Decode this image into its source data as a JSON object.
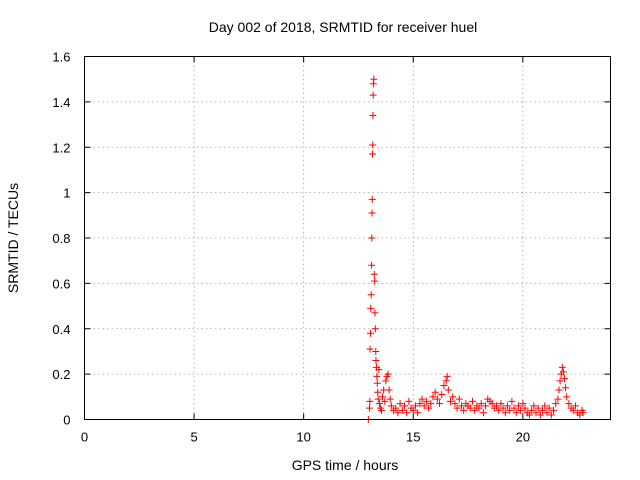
{
  "chart_data": {
    "type": "scatter",
    "title": "Day 002 of 2018, SRMTID for receiver huel",
    "xlabel": "GPS time / hours",
    "ylabel": "SRMTID / TECUs",
    "xlim": [
      0,
      24
    ],
    "ylim": [
      0,
      1.6
    ],
    "xticks": [
      0,
      5,
      10,
      15,
      20
    ],
    "yticks": [
      0,
      0.2,
      0.4,
      0.6,
      0.8,
      1,
      1.2,
      1.4,
      1.6
    ],
    "xtick_labels": [
      "0",
      "5",
      "10",
      "15",
      "20"
    ],
    "ytick_labels": [
      "0",
      "0.2",
      "0.4",
      "0.6",
      "0.8",
      "1",
      "1.2",
      "1.4",
      "1.6"
    ],
    "grid": true,
    "marker": "+",
    "color": "#ff0000",
    "series": [
      {
        "name": "SRMTID",
        "x": [
          12.95,
          13.0,
          13.02,
          13.03,
          13.05,
          13.06,
          13.08,
          13.1,
          13.11,
          13.12,
          13.13,
          13.14,
          13.15,
          13.16,
          13.17,
          13.18,
          13.2,
          13.22,
          13.24,
          13.25,
          13.27,
          13.29,
          13.3,
          13.32,
          13.34,
          13.36,
          13.38,
          13.4,
          13.43,
          13.46,
          13.5,
          13.55,
          13.6,
          13.65,
          13.7,
          13.75,
          13.8,
          13.85,
          13.9,
          13.95,
          14.0,
          14.1,
          14.2,
          14.3,
          14.4,
          14.5,
          14.6,
          14.7,
          14.8,
          14.9,
          15.0,
          15.1,
          15.2,
          15.3,
          15.4,
          15.5,
          15.6,
          15.7,
          15.8,
          15.9,
          16.0,
          16.1,
          16.2,
          16.3,
          16.4,
          16.5,
          16.55,
          16.6,
          16.7,
          16.8,
          16.9,
          17.0,
          17.1,
          17.2,
          17.3,
          17.4,
          17.5,
          17.6,
          17.7,
          17.8,
          17.9,
          18.0,
          18.1,
          18.2,
          18.3,
          18.4,
          18.5,
          18.6,
          18.7,
          18.8,
          18.9,
          19.0,
          19.1,
          19.2,
          19.3,
          19.4,
          19.5,
          19.6,
          19.7,
          19.8,
          19.9,
          20.0,
          20.1,
          20.2,
          20.3,
          20.4,
          20.5,
          20.6,
          20.7,
          20.8,
          20.9,
          21.0,
          21.1,
          21.2,
          21.3,
          21.4,
          21.5,
          21.6,
          21.65,
          21.7,
          21.75,
          21.8,
          21.85,
          21.9,
          21.95,
          22.0,
          22.1,
          22.2,
          22.3,
          22.4,
          22.5,
          22.6,
          22.7,
          22.75
        ],
        "y": [
          0.0,
          0.05,
          0.08,
          0.31,
          0.38,
          0.49,
          0.55,
          0.68,
          0.8,
          0.91,
          0.97,
          1.17,
          1.21,
          1.34,
          1.43,
          1.48,
          1.5,
          0.64,
          0.61,
          0.47,
          0.4,
          0.3,
          0.26,
          0.23,
          0.19,
          0.16,
          0.12,
          0.09,
          0.22,
          0.07,
          0.05,
          0.04,
          0.1,
          0.13,
          0.08,
          0.17,
          0.19,
          0.2,
          0.13,
          0.09,
          0.06,
          0.04,
          0.05,
          0.03,
          0.07,
          0.04,
          0.06,
          0.03,
          0.08,
          0.05,
          0.04,
          0.06,
          0.03,
          0.07,
          0.09,
          0.06,
          0.08,
          0.05,
          0.07,
          0.1,
          0.12,
          0.09,
          0.07,
          0.11,
          0.15,
          0.17,
          0.19,
          0.13,
          0.08,
          0.1,
          0.07,
          0.05,
          0.09,
          0.06,
          0.04,
          0.07,
          0.06,
          0.05,
          0.08,
          0.04,
          0.06,
          0.05,
          0.07,
          0.03,
          0.06,
          0.09,
          0.08,
          0.07,
          0.05,
          0.06,
          0.04,
          0.07,
          0.05,
          0.03,
          0.06,
          0.04,
          0.08,
          0.05,
          0.03,
          0.06,
          0.04,
          0.07,
          0.05,
          0.03,
          0.02,
          0.04,
          0.06,
          0.03,
          0.05,
          0.02,
          0.04,
          0.06,
          0.03,
          0.05,
          0.02,
          0.04,
          0.07,
          0.09,
          0.13,
          0.17,
          0.2,
          0.23,
          0.21,
          0.18,
          0.14,
          0.1,
          0.07,
          0.05,
          0.04,
          0.06,
          0.03,
          0.02,
          0.04,
          0.03
        ]
      }
    ]
  }
}
